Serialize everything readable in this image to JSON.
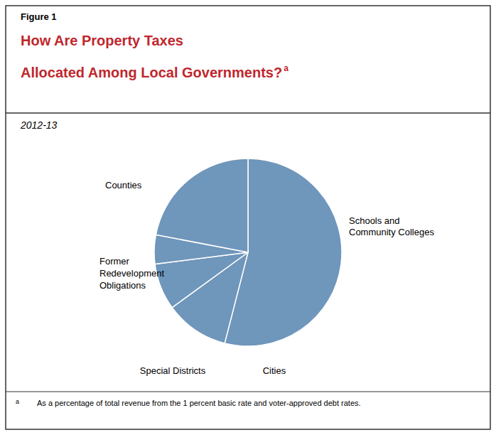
{
  "chart_data": {
    "type": "pie",
    "title": "How Are Property Taxes\nAllocated Among Local Governments?",
    "subtitle": "2012-13",
    "annotations": [
      "Figure 1",
      "a",
      "a",
      "As a percentage of total revenue from the 1 percent basic rate and voter-approved debt rates."
    ],
    "categories": [
      "Schools and\nCommunity Colleges",
      "Cities",
      "Special Districts",
      "Former\nRedevelopment\nObligations",
      "Counties"
    ],
    "values": [
      54,
      11,
      8,
      5,
      22
    ],
    "colors": [
      "#6F96BB",
      "#6F96BB",
      "#6F96BB",
      "#6F96BB",
      "#6F96BB"
    ],
    "title_color": "#c0272d"
  }
}
